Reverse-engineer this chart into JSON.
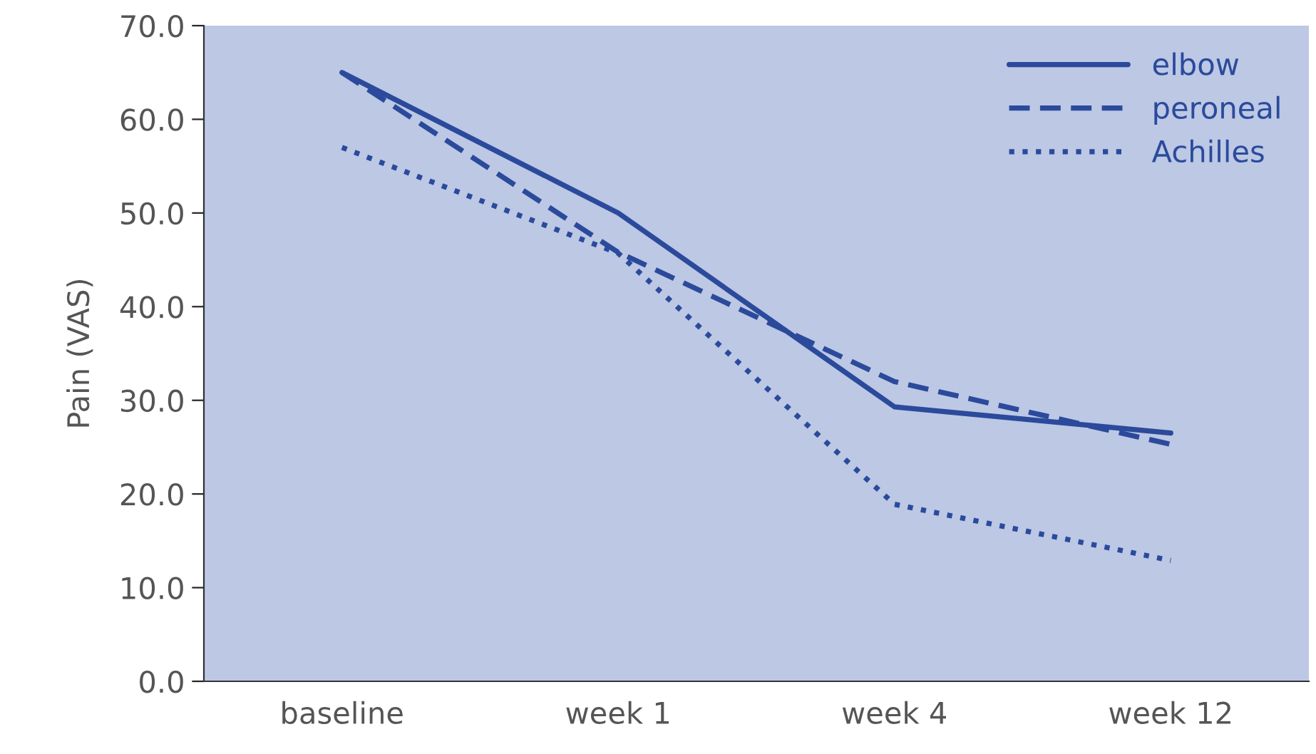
{
  "chart_data": {
    "type": "line",
    "ylabel": "Pain (VAS)",
    "categories": [
      "baseline",
      "week 1",
      "week 4",
      "week 12"
    ],
    "series": [
      {
        "name": "elbow",
        "color": "#2b4a9c",
        "values": [
          65.0,
          50.0,
          29.3,
          26.5
        ],
        "line_style": "solid"
      },
      {
        "name": "peroneal",
        "color": "#2b4a9c",
        "values": [
          65.0,
          45.8,
          32.0,
          25.3
        ],
        "line_style": "dashed"
      },
      {
        "name": "Achilles",
        "color": "#2b4a9c",
        "values": [
          57.0,
          45.7,
          18.9,
          12.9
        ],
        "line_style": "dotted"
      }
    ],
    "ylim": [
      0,
      70
    ],
    "yticks": [
      {
        "value": 0,
        "label": "0.0"
      },
      {
        "value": 10,
        "label": "10.0"
      },
      {
        "value": 20,
        "label": "20.0"
      },
      {
        "value": 30,
        "label": "30.0"
      },
      {
        "value": 40,
        "label": "40.0"
      },
      {
        "value": 50,
        "label": "50.0"
      },
      {
        "value": 60,
        "label": "60.0"
      },
      {
        "value": 70,
        "label": "70.0"
      }
    ],
    "grid": false,
    "legend": "top right",
    "marker": "none"
  }
}
